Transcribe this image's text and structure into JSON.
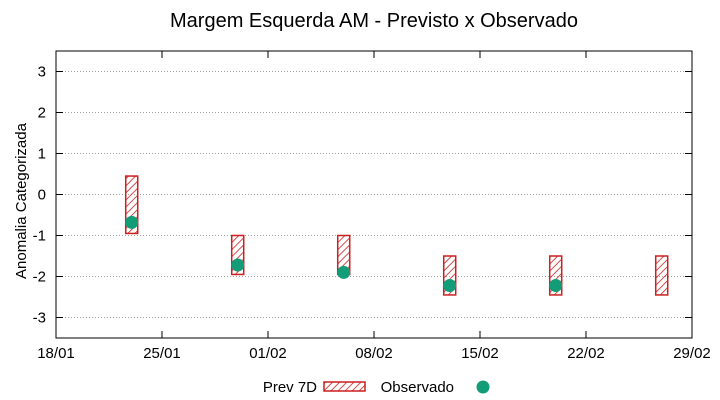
{
  "chart_data": {
    "type": "range-and-scatter",
    "title": "Margem Esquerda AM - Previsto x Observado",
    "xlabel": "",
    "ylabel": "Anomalia Categorizada",
    "ylim": [
      -3.5,
      3.5
    ],
    "yticks": [
      3,
      2,
      1,
      0,
      -1,
      -2,
      -3
    ],
    "ytick_labels": [
      "3",
      "2",
      "1",
      "0",
      "-1",
      "-2",
      "-3"
    ],
    "xlim_days": [
      0,
      42
    ],
    "xticks_days": [
      0,
      7,
      14,
      21,
      28,
      35,
      42
    ],
    "xtick_labels": [
      "18/01",
      "25/01",
      "01/02",
      "08/02",
      "15/02",
      "22/02",
      "29/02"
    ],
    "grid": true,
    "legend_position": "bottom",
    "series": [
      {
        "name": "Prev 7D",
        "kind": "range-box",
        "color": "#cc1f1f",
        "points": [
          {
            "day": 5,
            "low": -0.95,
            "high": 0.45
          },
          {
            "day": 12,
            "low": -1.95,
            "high": -1.0
          },
          {
            "day": 19,
            "low": -1.95,
            "high": -1.0
          },
          {
            "day": 26,
            "low": -2.45,
            "high": -1.5
          },
          {
            "day": 33,
            "low": -2.45,
            "high": -1.5
          },
          {
            "day": 40,
            "low": -2.45,
            "high": -1.5
          }
        ]
      },
      {
        "name": "Observado",
        "kind": "scatter",
        "color": "#129c78",
        "points": [
          {
            "day": 5,
            "value": -0.68
          },
          {
            "day": 12,
            "value": -1.72
          },
          {
            "day": 19,
            "value": -1.9
          },
          {
            "day": 26,
            "value": -2.22
          },
          {
            "day": 33,
            "value": -2.22
          }
        ]
      }
    ]
  }
}
